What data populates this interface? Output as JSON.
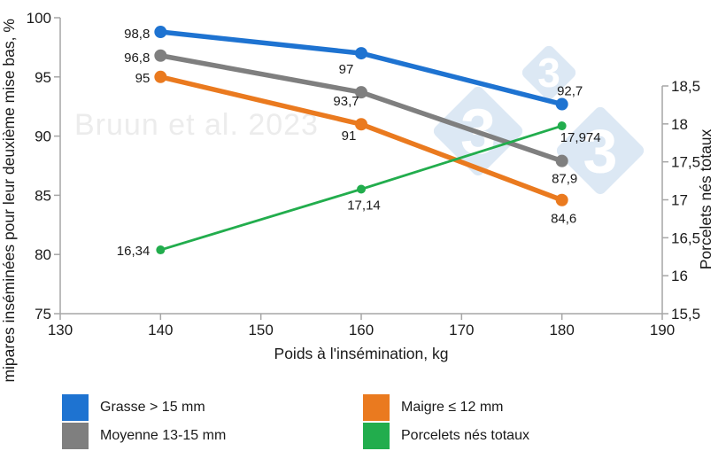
{
  "watermark": {
    "text": "Bruun et al. 2023",
    "logo_digit": "3",
    "logo_color": "#DCE8F4",
    "text_color": "#ECECEC"
  },
  "chart_data": {
    "type": "line",
    "x": [
      140,
      160,
      180
    ],
    "x_axis": {
      "label": "Poids à l'insémination, kg",
      "min": 130,
      "max": 190,
      "ticks": [
        130,
        140,
        150,
        160,
        170,
        180,
        190
      ]
    },
    "left_axis": {
      "label": "Primipares inséminées pour leur deuxième mise bas, %",
      "min": 75,
      "max": 100,
      "ticks": [
        75,
        80,
        85,
        90,
        95,
        100
      ]
    },
    "right_axis": {
      "label": "Porcelets nés totaux",
      "min": 15.5,
      "max": 18.5,
      "ticks": [
        15.5,
        16,
        16.5,
        17,
        17.5,
        18,
        18.5
      ],
      "tick_labels": [
        "15,5",
        "16",
        "16,5",
        "17",
        "17,5",
        "18",
        "18,5"
      ]
    },
    "grid": false,
    "legend_position": "bottom",
    "series": [
      {
        "name": "Grasse > 15 mm",
        "axis": "left",
        "color": "#1E73D1",
        "values": [
          98.8,
          97,
          92.7
        ],
        "point_labels": [
          "98,8",
          "97",
          "92,7"
        ]
      },
      {
        "name": "Moyenne 13-15 mm",
        "axis": "left",
        "color": "#7F7F7F",
        "values": [
          96.8,
          93.7,
          87.9
        ],
        "point_labels": [
          "96,8",
          "93,7",
          "87,9"
        ]
      },
      {
        "name": "Maigre ≤ 12 mm",
        "axis": "left",
        "color": "#EA7A1F",
        "values": [
          95,
          91,
          84.6
        ],
        "point_labels": [
          "95",
          "91",
          "84,6"
        ]
      },
      {
        "name": "Porcelets nés totaux",
        "axis": "right",
        "color": "#22AD4D",
        "values": [
          16.34,
          17.14,
          17.974
        ],
        "point_labels": [
          "16,34",
          "17,14",
          "17,974"
        ]
      }
    ],
    "legend_columns": [
      [
        0,
        1
      ],
      [
        2,
        3
      ]
    ]
  }
}
